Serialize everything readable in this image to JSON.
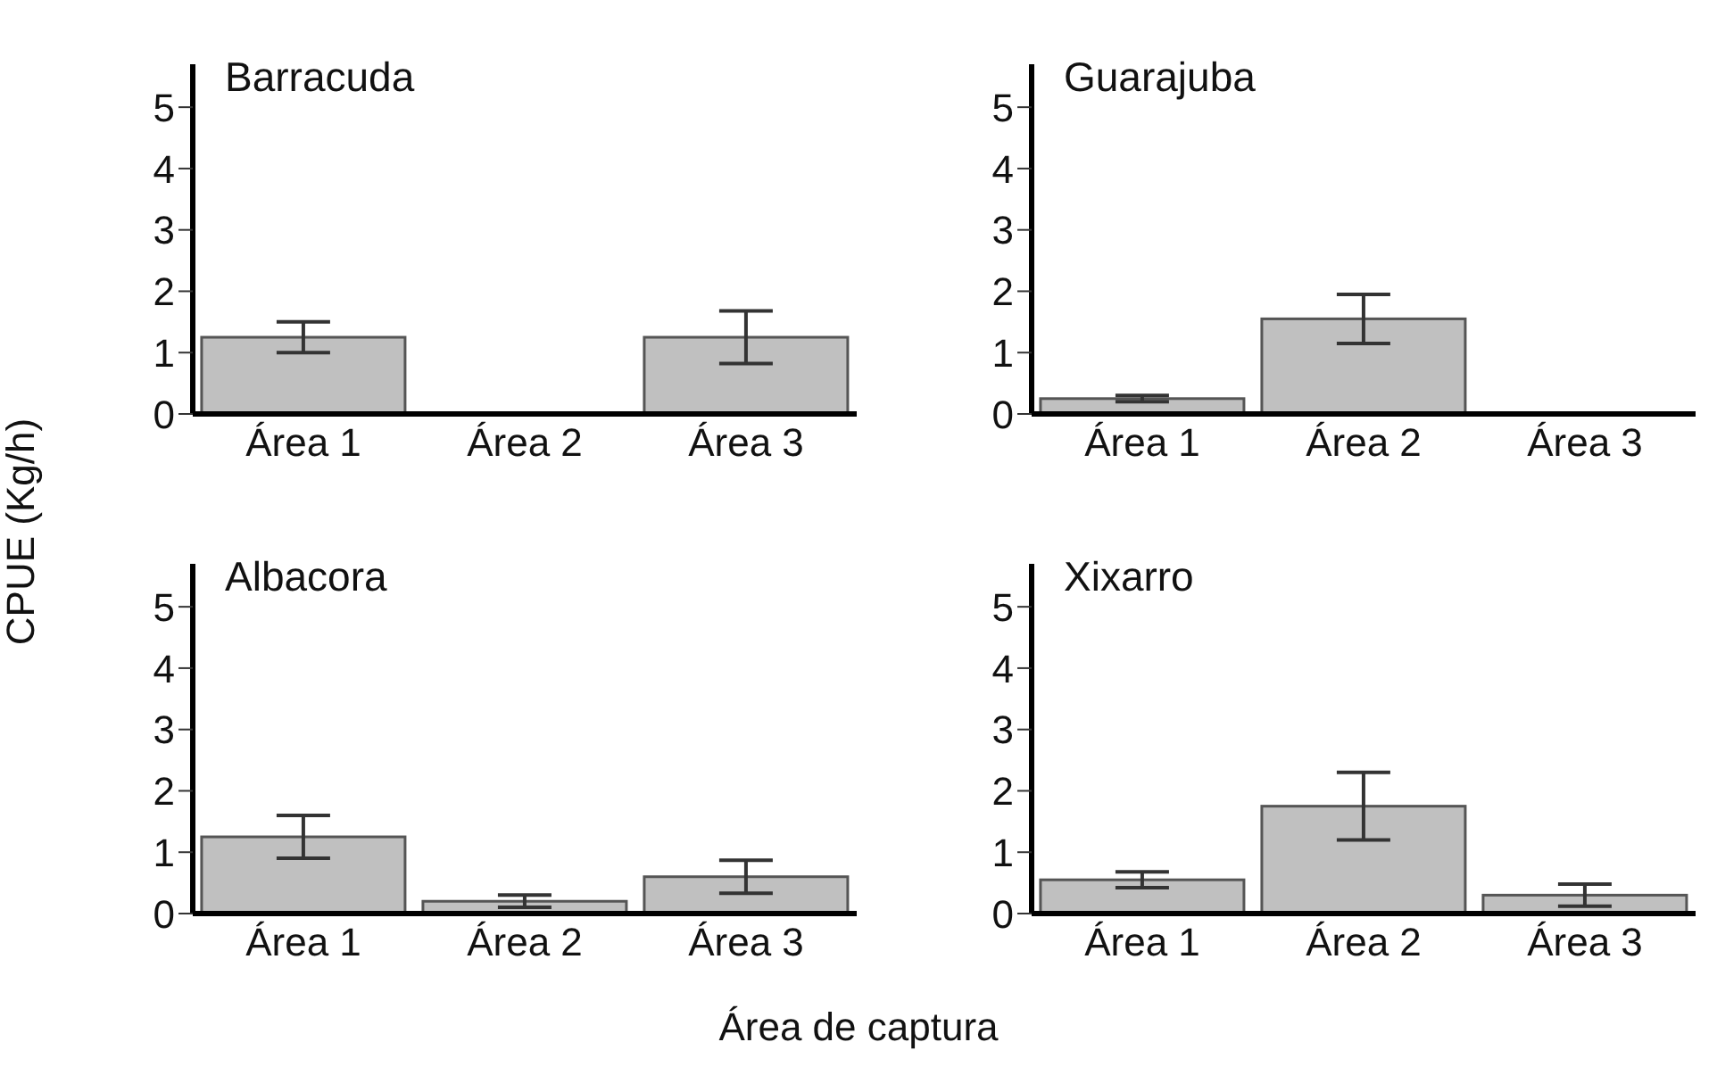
{
  "chart_data": [
    {
      "type": "bar",
      "title": "Barracuda",
      "ylabel": "CPUE (Kg/h)",
      "categories": [
        "Área 1",
        "Área 2",
        "Área 3"
      ],
      "values": [
        1.25,
        0,
        1.25
      ],
      "errors": [
        0.25,
        null,
        0.43
      ],
      "color": "#c0c0c0",
      "ylim": [
        0,
        5.7
      ],
      "yticks": [
        0,
        1,
        2,
        3,
        4,
        5
      ],
      "grid": false,
      "legend": false
    },
    {
      "type": "bar",
      "title": "Guarajuba",
      "categories": [
        "Área 1",
        "Área 2",
        "Área 3"
      ],
      "values": [
        0.25,
        1.55,
        0
      ],
      "errors": [
        0.05,
        0.4,
        null
      ],
      "color": "#c0c0c0",
      "ylim": [
        0,
        5.7
      ],
      "yticks": [
        0,
        1,
        2,
        3,
        4,
        5
      ],
      "grid": false,
      "legend": false
    },
    {
      "type": "bar",
      "title": "Albacora",
      "xlabel": "Área de captura",
      "categories": [
        "Área 1",
        "Área 2",
        "Área 3"
      ],
      "values": [
        1.25,
        0.2,
        0.6
      ],
      "errors": [
        0.35,
        0.1,
        0.27
      ],
      "color": "#c0c0c0",
      "ylim": [
        0,
        5.7
      ],
      "yticks": [
        0,
        1,
        2,
        3,
        4,
        5
      ],
      "grid": false,
      "legend": false
    },
    {
      "type": "bar",
      "title": "Xixarro",
      "categories": [
        "Área 1",
        "Área 2",
        "Área 3"
      ],
      "values": [
        0.55,
        1.75,
        0.3
      ],
      "errors": [
        0.13,
        0.55,
        0.18
      ],
      "color": "#c0c0c0",
      "ylim": [
        0,
        5.7
      ],
      "yticks": [
        0,
        1,
        2,
        3,
        4,
        5
      ],
      "grid": false,
      "legend": false
    }
  ]
}
